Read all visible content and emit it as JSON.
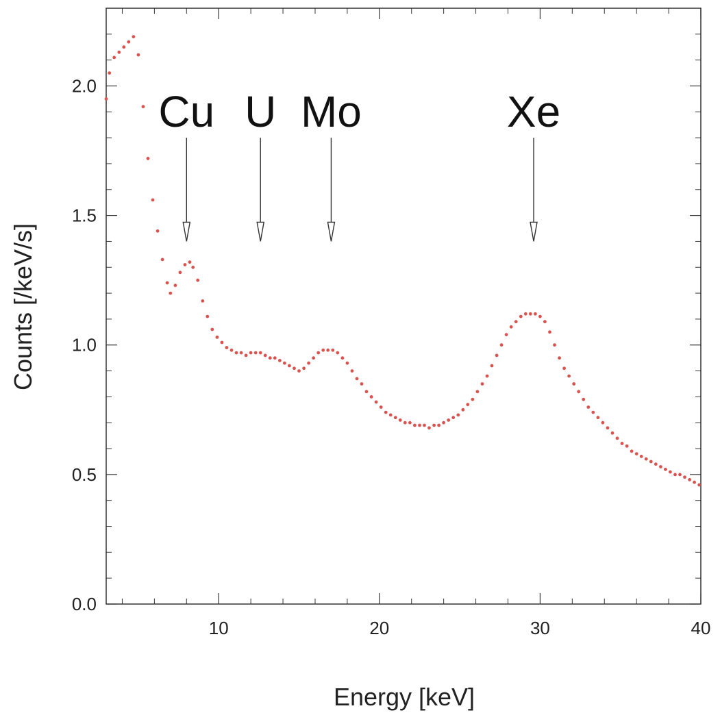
{
  "chart_data": {
    "type": "scatter",
    "title": "",
    "xlabel": "Energy [keV]",
    "ylabel": "Counts [/keV/s]",
    "xlim": [
      3,
      40
    ],
    "ylim": [
      0,
      2.3
    ],
    "x_ticks": [
      10,
      20,
      30,
      40
    ],
    "x_tick_labels": [
      "10",
      "20",
      "30",
      "40"
    ],
    "y_ticks": [
      0.0,
      0.5,
      1.0,
      1.5,
      2.0
    ],
    "y_tick_labels": [
      "0.0",
      "0.5",
      "1.0",
      "1.5",
      "2.0"
    ],
    "x_minor_step": 2,
    "y_minor_step": 0.1,
    "grid": false,
    "series": [
      {
        "color": "#d9534f",
        "x": [
          3.0,
          3.2,
          3.5,
          3.8,
          4.1,
          4.4,
          4.7,
          5.0,
          5.3,
          5.6,
          5.9,
          6.2,
          6.5,
          6.8,
          7.0,
          7.3,
          7.6,
          7.9,
          8.2,
          8.4,
          8.7,
          9.0,
          9.3,
          9.6,
          9.9,
          10.2,
          10.5,
          10.8,
          11.1,
          11.4,
          11.7,
          12.0,
          12.3,
          12.6,
          12.9,
          13.2,
          13.5,
          13.8,
          14.1,
          14.4,
          14.7,
          15.0,
          15.3,
          15.6,
          15.9,
          16.2,
          16.5,
          16.8,
          17.1,
          17.4,
          17.7,
          18.0,
          18.3,
          18.6,
          18.9,
          19.2,
          19.5,
          19.8,
          20.1,
          20.4,
          20.7,
          21.0,
          21.3,
          21.6,
          21.9,
          22.2,
          22.5,
          22.8,
          23.1,
          23.4,
          23.7,
          24.0,
          24.3,
          24.6,
          24.9,
          25.2,
          25.5,
          25.8,
          26.1,
          26.4,
          26.7,
          27.0,
          27.3,
          27.6,
          27.9,
          28.2,
          28.5,
          28.8,
          29.1,
          29.4,
          29.7,
          30.0,
          30.3,
          30.6,
          30.9,
          31.2,
          31.5,
          31.8,
          32.1,
          32.4,
          32.7,
          33.0,
          33.3,
          33.6,
          33.9,
          34.2,
          34.5,
          34.8,
          35.1,
          35.4,
          35.7,
          36.0,
          36.3,
          36.6,
          36.9,
          37.2,
          37.5,
          37.8,
          38.1,
          38.4,
          38.7,
          39.0,
          39.3,
          39.6,
          39.9
        ],
        "y": [
          1.95,
          2.05,
          2.11,
          2.13,
          2.15,
          2.17,
          2.19,
          2.12,
          1.92,
          1.72,
          1.56,
          1.44,
          1.33,
          1.24,
          1.2,
          1.23,
          1.28,
          1.31,
          1.32,
          1.3,
          1.25,
          1.17,
          1.11,
          1.06,
          1.03,
          1.01,
          0.99,
          0.98,
          0.97,
          0.97,
          0.96,
          0.97,
          0.97,
          0.97,
          0.96,
          0.95,
          0.95,
          0.94,
          0.93,
          0.92,
          0.91,
          0.9,
          0.91,
          0.93,
          0.95,
          0.97,
          0.98,
          0.98,
          0.98,
          0.97,
          0.95,
          0.93,
          0.9,
          0.87,
          0.85,
          0.82,
          0.8,
          0.78,
          0.76,
          0.74,
          0.73,
          0.72,
          0.71,
          0.7,
          0.7,
          0.69,
          0.69,
          0.69,
          0.68,
          0.69,
          0.69,
          0.7,
          0.71,
          0.72,
          0.73,
          0.75,
          0.77,
          0.79,
          0.82,
          0.85,
          0.88,
          0.92,
          0.96,
          1.0,
          1.04,
          1.07,
          1.09,
          1.11,
          1.12,
          1.12,
          1.12,
          1.11,
          1.09,
          1.05,
          1.0,
          0.95,
          0.91,
          0.88,
          0.85,
          0.82,
          0.79,
          0.76,
          0.74,
          0.72,
          0.7,
          0.68,
          0.66,
          0.64,
          0.62,
          0.61,
          0.59,
          0.58,
          0.57,
          0.56,
          0.55,
          0.54,
          0.53,
          0.52,
          0.51,
          0.5,
          0.5,
          0.49,
          0.48,
          0.47,
          0.46
        ]
      }
    ],
    "annotations": [
      {
        "text": "Cu",
        "x": 8.0,
        "arrow_from_y": 1.8,
        "arrow_to_y": 1.4
      },
      {
        "text": "U",
        "x": 12.6,
        "arrow_from_y": 1.8,
        "arrow_to_y": 1.4
      },
      {
        "text": "Mo",
        "x": 17.0,
        "arrow_from_y": 1.8,
        "arrow_to_y": 1.4
      },
      {
        "text": "Xe",
        "x": 29.6,
        "arrow_from_y": 1.8,
        "arrow_to_y": 1.4
      }
    ]
  }
}
